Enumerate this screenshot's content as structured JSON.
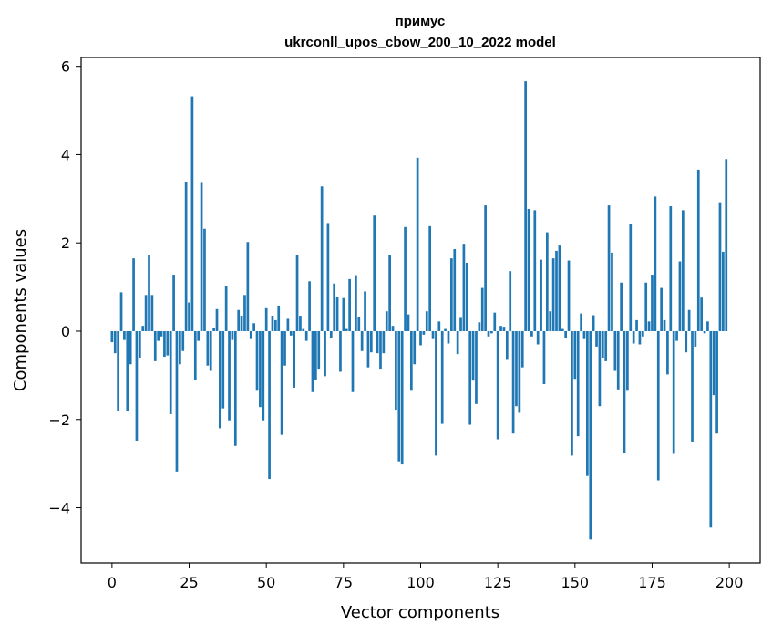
{
  "chart_data": {
    "type": "bar",
    "title": "примус",
    "subtitle": "ukrconll_upos_cbow_200_10_2022 model",
    "xlabel": "Vector components",
    "ylabel": "Components values",
    "xlim": [
      -10,
      210
    ],
    "ylim": [
      -5.25,
      6.2
    ],
    "xticks": [
      0,
      25,
      50,
      75,
      100,
      125,
      150,
      175,
      200
    ],
    "yticks": [
      -4,
      -2,
      0,
      2,
      4,
      6
    ],
    "ytick_labels": [
      "−4",
      "−2",
      "0",
      "2",
      "4",
      "6"
    ],
    "bar_color": "#1f77b4",
    "grid": false,
    "x": [
      0,
      1,
      2,
      3,
      4,
      5,
      6,
      7,
      8,
      9,
      10,
      11,
      12,
      13,
      14,
      15,
      16,
      17,
      18,
      19,
      20,
      21,
      22,
      23,
      24,
      25,
      26,
      27,
      28,
      29,
      30,
      31,
      32,
      33,
      34,
      35,
      36,
      37,
      38,
      39,
      40,
      41,
      42,
      43,
      44,
      45,
      46,
      47,
      48,
      49,
      50,
      51,
      52,
      53,
      54,
      55,
      56,
      57,
      58,
      59,
      60,
      61,
      62,
      63,
      64,
      65,
      66,
      67,
      68,
      69,
      70,
      71,
      72,
      73,
      74,
      75,
      76,
      77,
      78,
      79,
      80,
      81,
      82,
      83,
      84,
      85,
      86,
      87,
      88,
      89,
      90,
      91,
      92,
      93,
      94,
      95,
      96,
      97,
      98,
      99,
      100,
      101,
      102,
      103,
      104,
      105,
      106,
      107,
      108,
      109,
      110,
      111,
      112,
      113,
      114,
      115,
      116,
      117,
      118,
      119,
      120,
      121,
      122,
      123,
      124,
      125,
      126,
      127,
      128,
      129,
      130,
      131,
      132,
      133,
      134,
      135,
      136,
      137,
      138,
      139,
      140,
      141,
      142,
      143,
      144,
      145,
      146,
      147,
      148,
      149,
      150,
      151,
      152,
      153,
      154,
      155,
      156,
      157,
      158,
      159,
      160,
      161,
      162,
      163,
      164,
      165,
      166,
      167,
      168,
      169,
      170,
      171,
      172,
      173,
      174,
      175,
      176,
      177,
      178,
      179,
      180,
      181,
      182,
      183,
      184,
      185,
      186,
      187,
      188,
      189,
      190,
      191,
      192,
      193,
      194,
      195,
      196,
      197,
      198,
      199
    ],
    "values": [
      -0.25,
      -0.5,
      -1.8,
      0.88,
      -0.2,
      -1.82,
      -0.75,
      1.65,
      -2.48,
      -0.6,
      0.12,
      0.82,
      1.72,
      0.82,
      -0.68,
      -0.22,
      -0.12,
      -0.58,
      -0.55,
      -1.88,
      1.28,
      -3.18,
      -0.75,
      -0.45,
      3.38,
      0.65,
      5.32,
      -1.1,
      -0.22,
      3.36,
      2.32,
      -0.78,
      -0.9,
      0.08,
      0.5,
      -2.2,
      -1.75,
      1.03,
      -2.02,
      -0.2,
      -2.6,
      0.48,
      0.35,
      0.82,
      2.02,
      -0.18,
      0.18,
      -1.35,
      -1.72,
      -2.02,
      0.52,
      -3.35,
      0.35,
      0.25,
      0.58,
      -2.35,
      -0.78,
      0.28,
      -0.1,
      -1.28,
      1.73,
      0.35,
      0.05,
      -0.22,
      1.13,
      -1.38,
      -1.1,
      -0.85,
      3.28,
      -1.02,
      2.45,
      -0.15,
      1.08,
      0.78,
      -0.92,
      0.75,
      0.05,
      1.18,
      -1.38,
      1.27,
      0.32,
      -0.45,
      0.9,
      -0.82,
      -0.48,
      2.62,
      -0.5,
      -0.85,
      -0.5,
      0.45,
      1.72,
      0.12,
      -1.78,
      -2.95,
      -3.02,
      2.36,
      0.38,
      -1.35,
      -0.75,
      3.93,
      -0.32,
      -0.08,
      0.45,
      2.38,
      -0.18,
      -2.82,
      0.22,
      -2.1,
      0.05,
      -0.28,
      1.65,
      1.86,
      -0.52,
      0.3,
      1.98,
      1.55,
      -2.12,
      -1.12,
      -1.65,
      0.2,
      0.98,
      2.85,
      -0.12,
      -0.05,
      0.42,
      -2.45,
      0.12,
      0.1,
      -0.65,
      1.36,
      -2.32,
      -1.7,
      -1.85,
      -0.82,
      5.66,
      2.77,
      -0.12,
      2.74,
      -0.3,
      1.62,
      -1.2,
      2.24,
      0.45,
      1.65,
      1.82,
      1.94,
      0.05,
      -0.15,
      1.6,
      -2.82,
      -1.08,
      -2.38,
      0.4,
      -0.18,
      -3.28,
      -4.72,
      0.36,
      -0.35,
      -1.7,
      -0.6,
      -0.68,
      2.85,
      1.78,
      -0.9,
      -1.32,
      1.1,
      -2.75,
      -1.35,
      2.42,
      -0.28,
      0.25,
      -0.3,
      -0.12,
      1.1,
      0.22,
      1.28,
      3.05,
      -3.38,
      0.98,
      0.25,
      -0.98,
      2.83,
      -2.78,
      -0.22,
      1.58,
      2.74,
      -0.48,
      0.48,
      -2.5,
      -0.35,
      3.66,
      0.76,
      -0.05,
      0.22,
      -4.45,
      -1.45,
      -2.32,
      2.92,
      1.8,
      3.9
    ]
  }
}
